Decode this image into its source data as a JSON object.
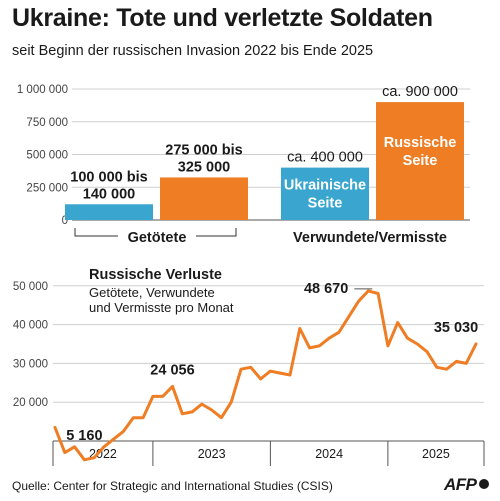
{
  "title": "Ukraine: Tote und verletzte Soldaten",
  "subtitle": "seit Beginn der russischen Invasion 2022 bis Ende 2025",
  "source": "Quelle: Center for Strategic and International Studies (CSIS)",
  "logo_text": "AFP",
  "colors": {
    "ukraine": "#3aa6d0",
    "russia": "#ee7d24",
    "line": "#ee7d24",
    "grid": "#cfcfcf",
    "text": "#1a1a1a"
  },
  "chart_data": [
    {
      "type": "bar",
      "yticks": [
        "0",
        "250 000",
        "500 000",
        "750 000",
        "1 000 000"
      ],
      "ylim": [
        0,
        1000000
      ],
      "groups": [
        {
          "label": "Getötete",
          "bars": [
            {
              "name": "Ukrainische Seite",
              "value": 120000,
              "low": 100000,
              "high": 140000,
              "label_lines": [
                "100 000 bis",
                "140 000"
              ]
            },
            {
              "name": "Russische Seite",
              "value": 325000,
              "low": 275000,
              "high": 325000,
              "label_lines": [
                "275 000 bis",
                "325 000"
              ]
            }
          ]
        },
        {
          "label": "Verwundete/Vermisste",
          "bars": [
            {
              "name": "Ukrainische Seite",
              "value": 400000,
              "label_lines": [
                "ca. 400 000"
              ],
              "inner_lines": [
                "Ukrainische",
                "Seite"
              ]
            },
            {
              "name": "Russische Seite",
              "value": 900000,
              "label_lines": [
                "ca. 900 000"
              ],
              "inner_lines": [
                "Russische",
                "Seite"
              ]
            }
          ]
        }
      ]
    },
    {
      "type": "line",
      "title": "Russische Verluste",
      "subtitle_lines": [
        "Getötete, Verwundete",
        "und Vermisste pro Monat"
      ],
      "yticks": [
        "20 000",
        "30 000",
        "40 000",
        "50 000"
      ],
      "ylim": [
        10000,
        52000
      ],
      "xticks": [
        "2022",
        "2023",
        "2024",
        "2025"
      ],
      "series": [
        {
          "values": [
            13500,
            7000,
            8500,
            5160,
            5700,
            8500,
            10500,
            12500,
            16000,
            16000,
            21500,
            21500,
            24056,
            17000,
            17500,
            19500,
            18000,
            16000,
            20000,
            28500,
            29000,
            26000,
            28000,
            27500,
            27000,
            39000,
            34000,
            34500,
            36500,
            38000,
            42000,
            46000,
            48670,
            48000,
            34500,
            40500,
            36500,
            35000,
            33000,
            29000,
            28500,
            30500,
            30000,
            35030
          ]
        }
      ],
      "annotations": [
        {
          "text": "5 160",
          "index": 3
        },
        {
          "text": "24 056",
          "index": 12
        },
        {
          "text": "48 670",
          "index": 32
        },
        {
          "text": "35 030",
          "index": 43
        }
      ]
    }
  ]
}
